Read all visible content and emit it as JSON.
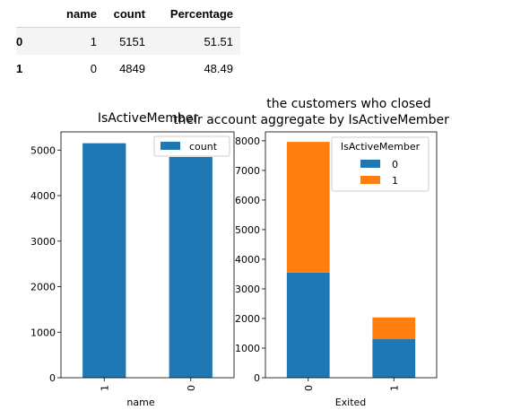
{
  "table": {
    "columns": [
      "name",
      "count",
      "Percentage"
    ],
    "rows": [
      {
        "index": "0",
        "name": "1",
        "count": "5151",
        "percentage": "51.51"
      },
      {
        "index": "1",
        "name": "0",
        "count": "4849",
        "percentage": "48.49"
      }
    ]
  },
  "colors": {
    "blue": "#1f77b4",
    "orange": "#ff7f0e"
  },
  "chart_data": [
    {
      "type": "bar",
      "title": "IsActiveMember",
      "xlabel": "name",
      "ylabel": "",
      "categories": [
        "1",
        "0"
      ],
      "series": [
        {
          "name": "count",
          "values": [
            5151,
            4849
          ]
        }
      ],
      "ylim": [
        0,
        5400
      ],
      "yticks": [
        0,
        1000,
        2000,
        3000,
        4000,
        5000
      ],
      "legend": "top-right",
      "grid": false
    },
    {
      "type": "bar",
      "stacked": true,
      "title": "the customers who closed their account aggregate by IsActiveMember",
      "title_lines": [
        "the customers who closed",
        "their account aggregate by IsActiveMember"
      ],
      "xlabel": "Exited",
      "ylabel": "",
      "categories": [
        "0",
        "1"
      ],
      "legend_title": "IsActiveMember",
      "series": [
        {
          "name": "0",
          "values": [
            3547,
            1302
          ]
        },
        {
          "name": "1",
          "values": [
            4416,
            735
          ]
        }
      ],
      "ylim": [
        0,
        8300
      ],
      "yticks": [
        0,
        1000,
        2000,
        3000,
        4000,
        5000,
        6000,
        7000,
        8000
      ],
      "legend": "top-right",
      "grid": false
    }
  ]
}
